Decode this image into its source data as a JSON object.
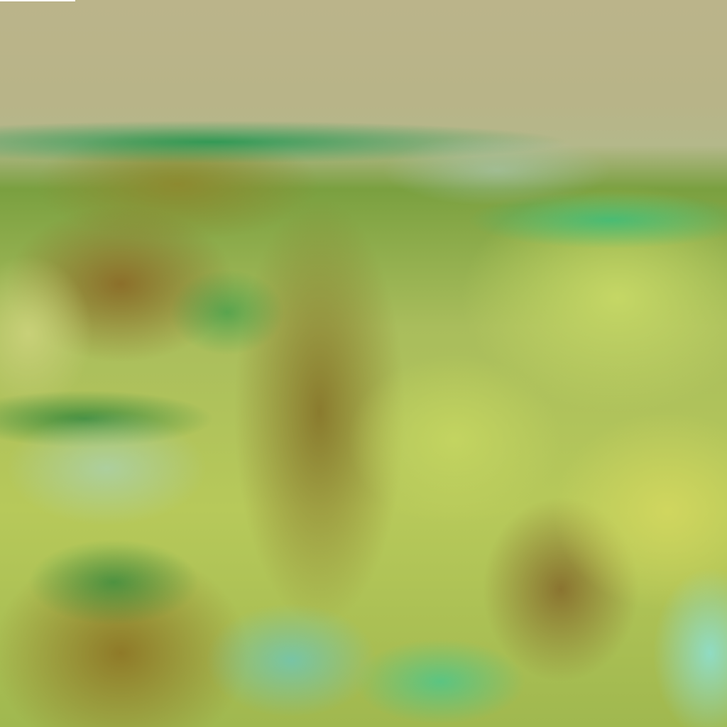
{
  "image": {
    "kind": "false-color satellite imagery of cloud systems",
    "colors": {
      "upper_land": "#b9b585",
      "cloud_brown": "#8a7a2a",
      "cloud_yellow": "#c8d660",
      "cloud_green": "#2fa05a",
      "cloud_cyan": "#5fd8b0",
      "water_cyan": "#8fe0d8"
    }
  }
}
